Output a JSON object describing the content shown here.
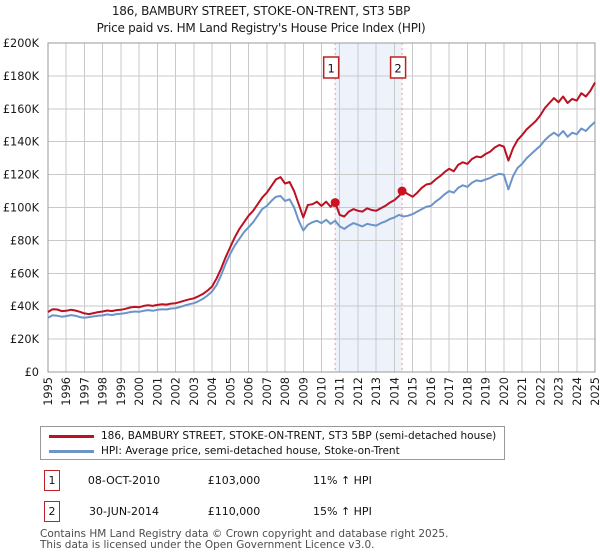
{
  "chart_data": {
    "type": "line",
    "title": "186, BAMBURY STREET, STOKE-ON-TRENT, ST3 5BP",
    "subtitle": "Price paid vs. HM Land Registry's House Price Index (HPI)",
    "xlabel": "",
    "ylabel": "",
    "x_range": [
      1995,
      2025
    ],
    "y_range": [
      0,
      200000
    ],
    "y_tick_step": 20000,
    "x_tick_step": 1,
    "grid": true,
    "legend_position": "bottom",
    "band_x": [
      2010.75,
      2014.42
    ],
    "series": [
      {
        "name": "186, BAMBURY STREET, STOKE-ON-TRENT, ST3 5BP (semi-detached house)",
        "color": "#bb1122",
        "x_start": 1995,
        "x_step": 0.25,
        "values": [
          36500,
          38200,
          38000,
          37000,
          37200,
          37800,
          37400,
          36600,
          35600,
          35200,
          35800,
          36400,
          36800,
          37400,
          37000,
          37600,
          37800,
          38400,
          39200,
          39600,
          39400,
          40200,
          40600,
          40200,
          40800,
          41200,
          41000,
          41600,
          41800,
          42600,
          43400,
          44200,
          44800,
          46000,
          47500,
          49500,
          52000,
          57000,
          63000,
          70000,
          76000,
          82000,
          87000,
          91000,
          95000,
          98000,
          102000,
          106000,
          109000,
          113000,
          117000,
          118500,
          114500,
          115500,
          110000,
          102000,
          94000,
          101500,
          102000,
          103500,
          101000,
          103500,
          100500,
          103000,
          95500,
          94500,
          97500,
          99000,
          98000,
          97500,
          99500,
          98500,
          98000,
          99500,
          101000,
          103000,
          104500,
          107000,
          110000,
          108000,
          106500,
          109000,
          112000,
          114000,
          114500,
          117000,
          119000,
          121500,
          123500,
          122000,
          126000,
          127500,
          126500,
          129500,
          131000,
          130500,
          132500,
          134000,
          136500,
          138000,
          137000,
          128500,
          136000,
          141000,
          144000,
          147500,
          150000,
          152500,
          156000,
          160500,
          163500,
          166500,
          164000,
          167500,
          163500,
          166000,
          165000,
          169500,
          167500,
          171000,
          176000
        ]
      },
      {
        "name": "HPI: Average price, semi-detached house, Stoke-on-Trent",
        "color": "#6b94c8",
        "x_start": 1995,
        "x_step": 0.25,
        "values": [
          33000,
          34500,
          34200,
          33600,
          34000,
          34600,
          34200,
          33400,
          33000,
          33400,
          33800,
          34200,
          34400,
          35000,
          34600,
          35200,
          35400,
          35800,
          36400,
          36800,
          36600,
          37200,
          37600,
          37200,
          37800,
          38200,
          38000,
          38600,
          38800,
          39600,
          40400,
          41200,
          41800,
          43000,
          44500,
          46500,
          49000,
          53000,
          59000,
          66000,
          72000,
          77000,
          81000,
          85000,
          88000,
          91000,
          95000,
          99000,
          101000,
          104000,
          106500,
          107000,
          104000,
          105000,
          100000,
          92000,
          86000,
          89500,
          91000,
          92000,
          90500,
          92500,
          90000,
          92000,
          88500,
          87000,
          89000,
          90500,
          89500,
          88500,
          90000,
          89500,
          89000,
          90500,
          91500,
          93000,
          94000,
          95500,
          94500,
          95000,
          96000,
          97500,
          99000,
          100500,
          101000,
          103500,
          105500,
          108000,
          110000,
          109000,
          112000,
          113500,
          112500,
          115000,
          116500,
          116000,
          117000,
          118000,
          119500,
          120500,
          120000,
          111000,
          119000,
          124000,
          126500,
          130000,
          132500,
          135000,
          137500,
          141000,
          143500,
          145500,
          143500,
          146500,
          143000,
          145500,
          144500,
          148000,
          146500,
          149500,
          152000
        ]
      }
    ],
    "events": [
      {
        "n": "1",
        "date": "08-OCT-2010",
        "x": 2010.75,
        "price": 103000,
        "price_label": "£103,000",
        "hpi_label": "11% ↑ HPI"
      },
      {
        "n": "2",
        "date": "30-JUN-2014",
        "x": 2014.42,
        "price": 110000,
        "price_label": "£110,000",
        "hpi_label": "15% ↑ HPI"
      }
    ]
  },
  "footer": {
    "line1": "Contains HM Land Registry data © Crown copyright and database right 2025.",
    "line2": "This data is licensed under the Open Government Licence v3.0."
  }
}
